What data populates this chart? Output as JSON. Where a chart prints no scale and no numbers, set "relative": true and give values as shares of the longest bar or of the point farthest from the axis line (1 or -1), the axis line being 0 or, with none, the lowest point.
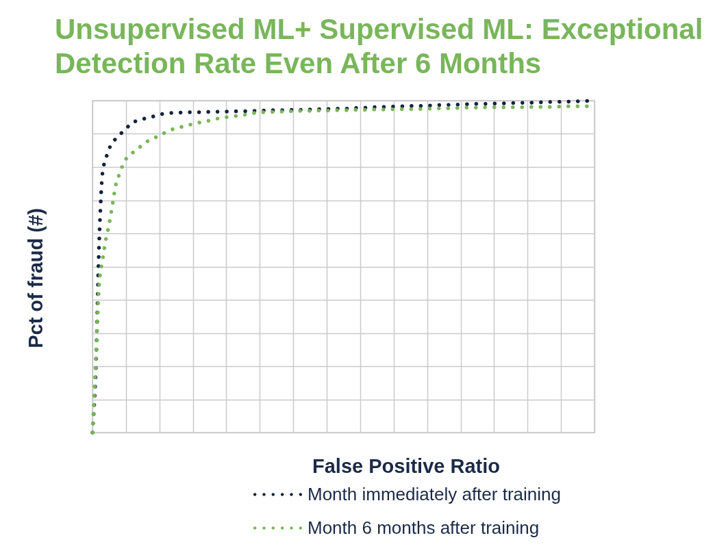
{
  "chart_data": {
    "type": "line",
    "title": "Unsupervised ML+ Supervised ML: Exceptional Detection Rate Even After 6 Months",
    "xlabel": "False Positive Ratio",
    "ylabel": "Pct of fraud (#)",
    "categories": [
      null,
      null,
      null,
      null,
      null,
      null,
      null,
      null,
      null,
      null,
      null,
      null,
      null,
      null,
      null,
      null,
      null,
      null,
      null,
      null,
      null,
      null,
      null,
      null,
      null,
      null,
      null,
      null,
      null,
      null,
      null,
      null,
      null,
      null,
      null,
      null,
      null,
      null,
      null,
      null,
      null,
      null,
      null,
      null,
      null,
      null,
      null,
      null,
      null,
      null,
      null,
      null,
      null,
      null,
      null,
      null,
      null,
      null,
      null,
      null,
      null,
      null,
      null,
      null,
      null,
      null,
      null,
      null,
      null,
      null,
      null,
      null,
      null,
      null,
      null,
      null,
      null,
      null,
      null,
      null,
      null,
      null,
      null,
      null,
      null,
      null,
      null,
      null,
      null,
      null,
      null,
      null,
      null,
      null,
      null,
      null,
      null,
      null,
      null,
      null,
      null,
      null,
      null,
      null,
      null,
      null,
      null,
      null,
      null,
      null,
      null,
      null,
      null,
      null,
      null,
      null,
      null,
      null,
      null,
      null,
      null,
      null,
      null,
      null,
      null,
      null,
      null,
      null,
      null,
      null,
      null,
      null,
      null,
      null,
      null,
      null,
      null,
      null,
      null,
      null,
      null,
      null,
      null,
      null,
      null,
      null,
      null,
      null,
      null,
      null,
      null
    ],
    "relative": true,
    "series": [
      {
        "name": "Month immediately after training",
        "color": "#13233f",
        "values": [
          0,
          0.191,
          0.572,
          0.782,
          0.825,
          0.855,
          0.875,
          0.885,
          0.895,
          0.906,
          0.916,
          0.925,
          0.935,
          0.938,
          0.941,
          0.944,
          0.947,
          0.949,
          0.952,
          0.955,
          0.957,
          0.96,
          0.961,
          0.962,
          0.963,
          0.963,
          0.964,
          0.964,
          0.964,
          0.965,
          0.965,
          0.965,
          0.965,
          0.966,
          0.966,
          0.966,
          0.966,
          0.966,
          0.967,
          0.967,
          0.967,
          0.967,
          0.967,
          0.968,
          0.968,
          0.968,
          0.968,
          0.968,
          0.969,
          0.969,
          0.969,
          0.97,
          0.97,
          0.97,
          0.971,
          0.971,
          0.971,
          0.971,
          0.972,
          0.972,
          0.972,
          0.972,
          0.972,
          0.973,
          0.973,
          0.973,
          0.973,
          0.974,
          0.974,
          0.974,
          0.975,
          0.975,
          0.975,
          0.976,
          0.976,
          0.976,
          0.976,
          0.977,
          0.977,
          0.978,
          0.978,
          0.978,
          0.979,
          0.979,
          0.98,
          0.981,
          0.981,
          0.981,
          0.981,
          0.982,
          0.982,
          0.982,
          0.983,
          0.983,
          0.983,
          0.984,
          0.984,
          0.984,
          0.984,
          0.985,
          0.985,
          0.985,
          0.986,
          0.986,
          0.987,
          0.987,
          0.987,
          0.988,
          0.988,
          0.988,
          0.989,
          0.989,
          0.989,
          0.989,
          0.99,
          0.99,
          0.99,
          0.99,
          0.991,
          0.991,
          0.991,
          0.991,
          0.992,
          0.992,
          0.992,
          0.993,
          0.993,
          0.993,
          0.993,
          0.994,
          0.994,
          0.994,
          0.994,
          0.995,
          0.995,
          0.995,
          0.995,
          0.996,
          0.996,
          0.996,
          0.997,
          0.997,
          0.997,
          0.997,
          0.998,
          0.998,
          0.998,
          0.999,
          0.999,
          0.999,
          1.0
        ]
      },
      {
        "name": "Month 6 months after training",
        "color": "#7ab65a",
        "values": [
          0,
          0.22,
          0.444,
          0.519,
          0.582,
          0.628,
          0.688,
          0.748,
          0.777,
          0.804,
          0.824,
          0.835,
          0.843,
          0.851,
          0.859,
          0.866,
          0.874,
          0.881,
          0.885,
          0.89,
          0.895,
          0.9,
          0.905,
          0.91,
          0.914,
          0.917,
          0.919,
          0.922,
          0.924,
          0.927,
          0.93,
          0.932,
          0.934,
          0.936,
          0.938,
          0.94,
          0.943,
          0.945,
          0.947,
          0.949,
          0.95,
          0.952,
          0.953,
          0.954,
          0.956,
          0.957,
          0.958,
          0.96,
          0.962,
          0.964,
          0.965,
          0.965,
          0.966,
          0.966,
          0.966,
          0.967,
          0.967,
          0.967,
          0.967,
          0.968,
          0.968,
          0.968,
          0.969,
          0.969,
          0.969,
          0.969,
          0.969,
          0.97,
          0.97,
          0.97,
          0.97,
          0.97,
          0.971,
          0.971,
          0.971,
          0.971,
          0.971,
          0.971,
          0.972,
          0.972,
          0.972,
          0.972,
          0.972,
          0.972,
          0.973,
          0.973,
          0.973,
          0.973,
          0.973,
          0.973,
          0.974,
          0.974,
          0.974,
          0.974,
          0.974,
          0.974,
          0.975,
          0.975,
          0.975,
          0.975,
          0.975,
          0.976,
          0.976,
          0.976,
          0.977,
          0.977,
          0.977,
          0.977,
          0.978,
          0.978,
          0.978,
          0.978,
          0.979,
          0.979,
          0.979,
          0.979,
          0.98,
          0.98,
          0.98,
          0.98,
          0.98,
          0.98,
          0.98,
          0.98,
          0.98,
          0.98,
          0.98,
          0.98,
          0.98,
          0.98,
          0.98,
          0.981,
          0.981,
          0.981,
          0.981,
          0.981,
          0.981,
          0.981,
          0.982,
          0.982,
          0.982,
          0.982,
          0.983,
          0.983,
          0.983,
          0.983,
          0.983,
          0.983,
          0.983,
          0.983,
          0.983
        ]
      }
    ],
    "line_style": "dotted",
    "grid": true,
    "legend": "bottom"
  }
}
